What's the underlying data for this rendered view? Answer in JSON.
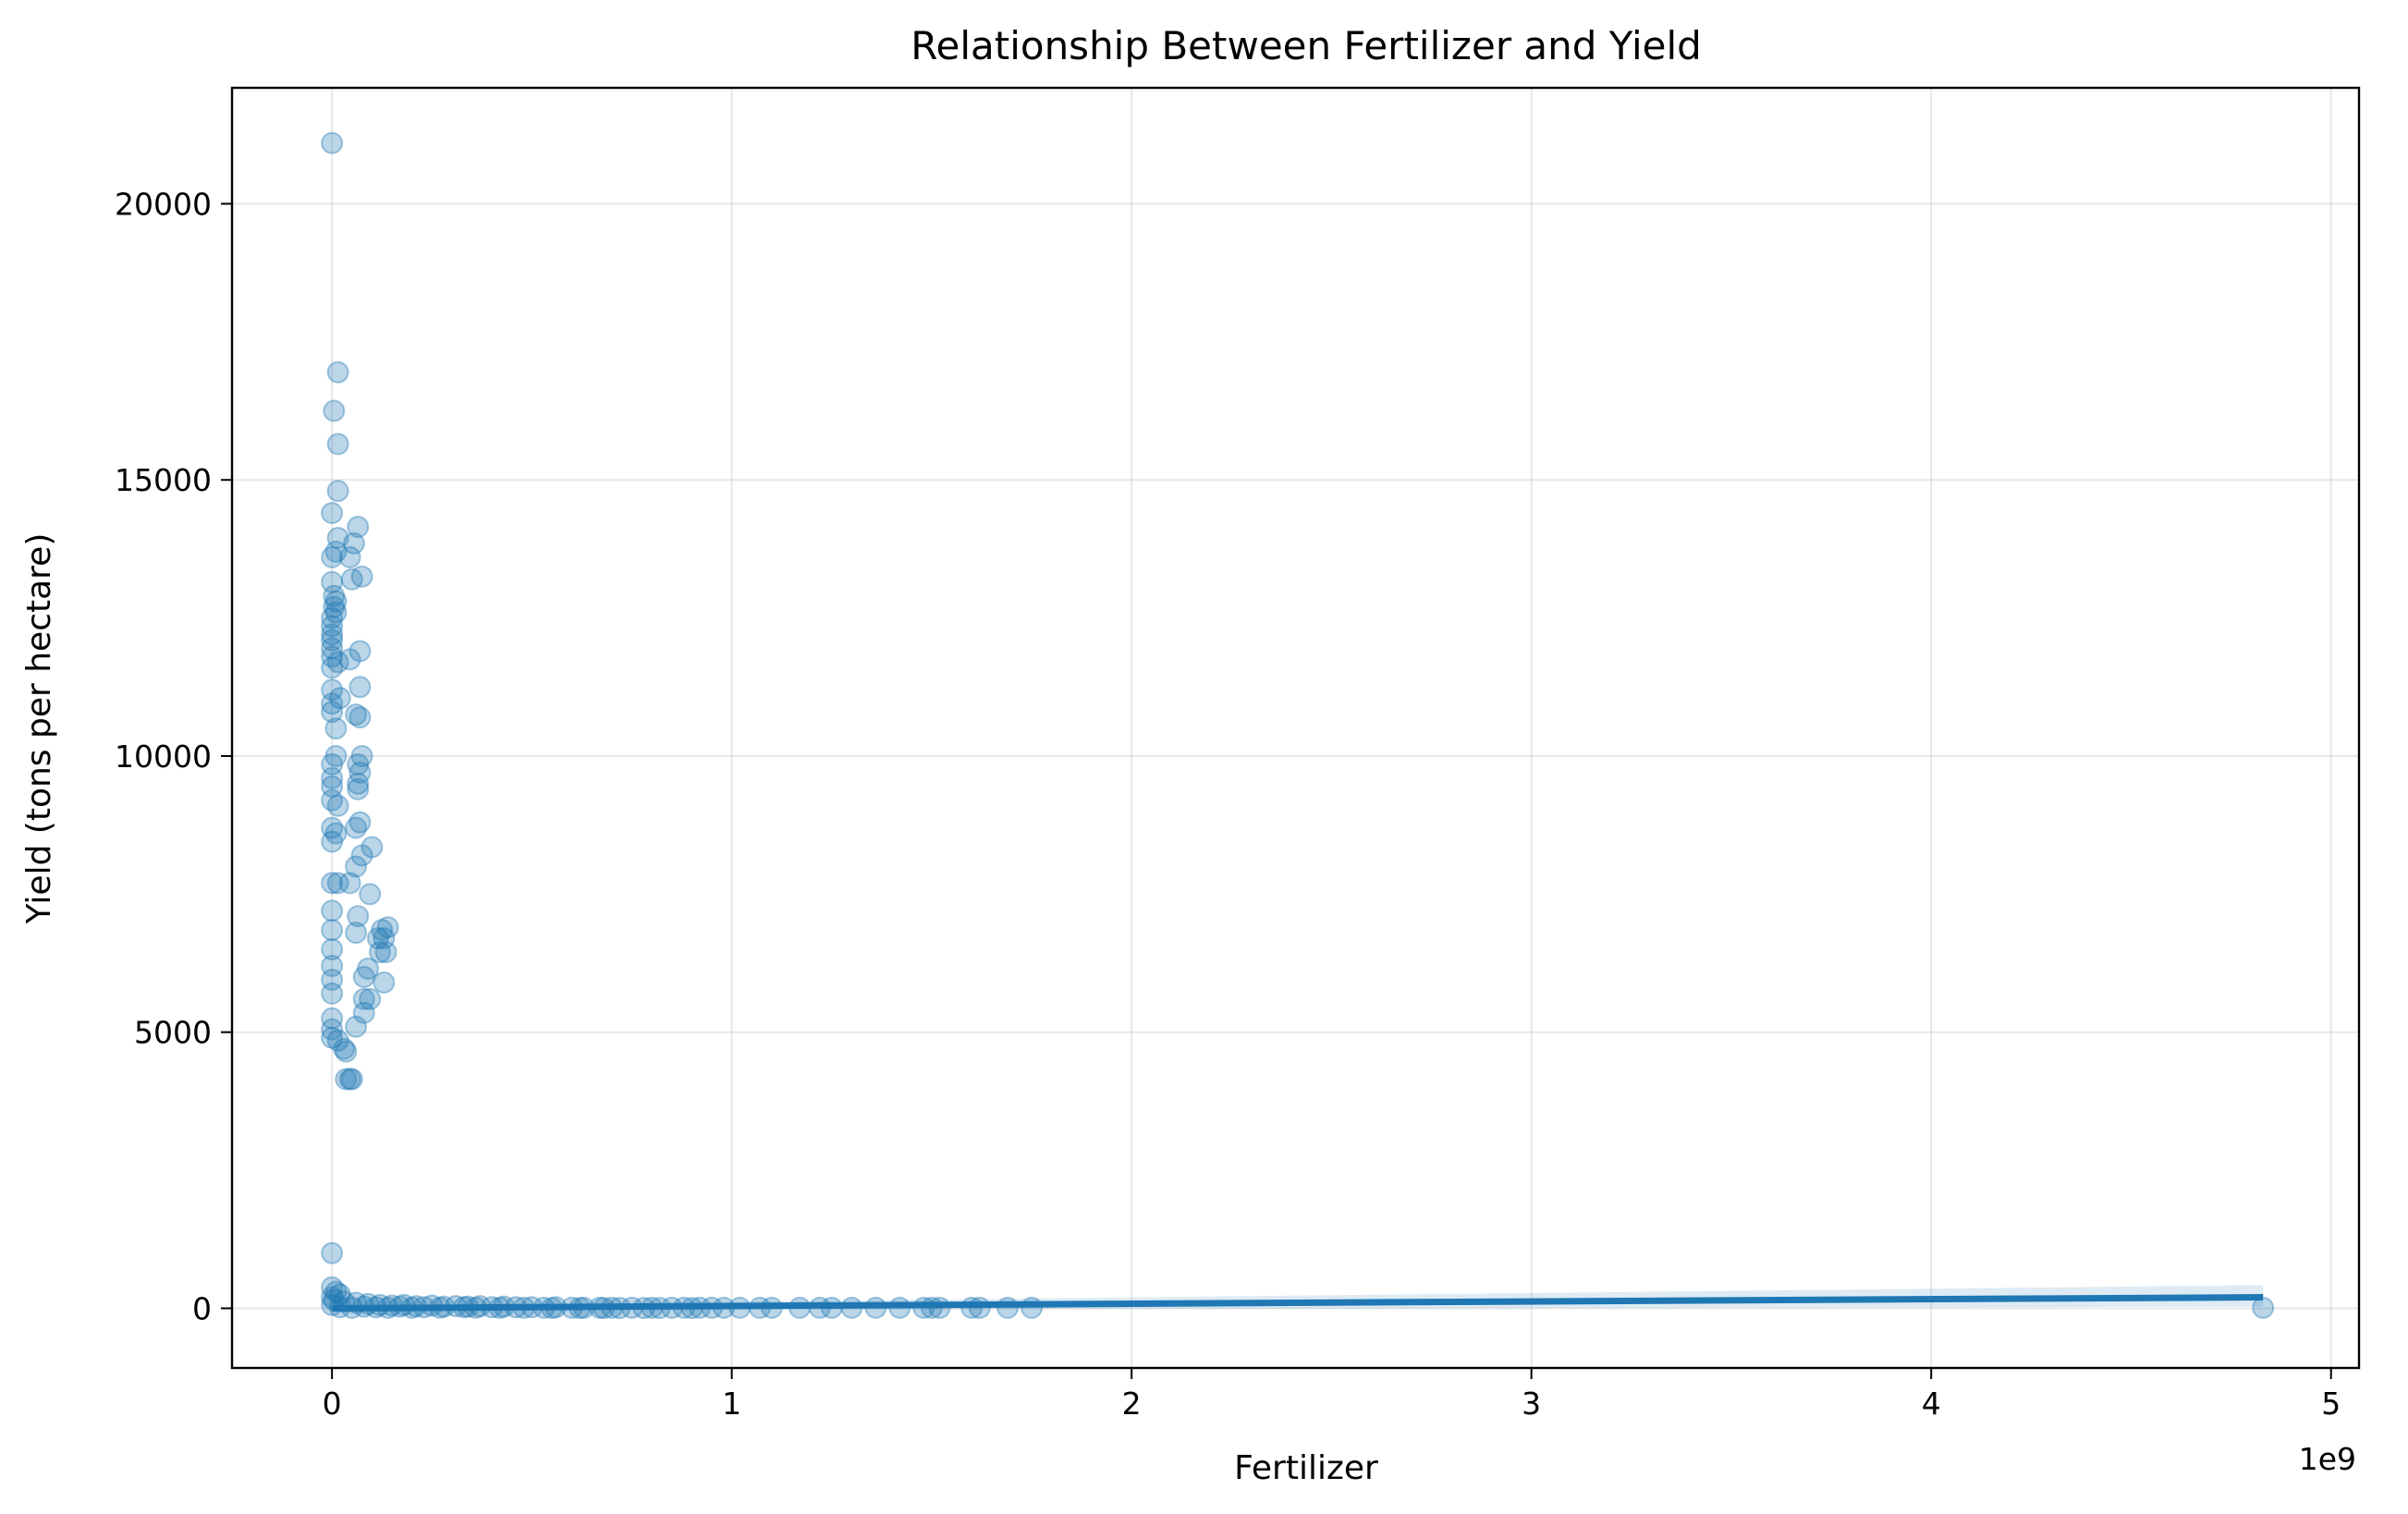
{
  "chart_data": {
    "type": "scatter",
    "title": "Relationship Between Fertilizer and Yield",
    "xlabel": "Fertilizer",
    "ylabel": "Yield (tons per hectare)",
    "x_offset_label": "1e9",
    "xlim": [
      -0.25,
      5.07
    ],
    "ylim": [
      -1080,
      22100
    ],
    "x_ticks": [
      0,
      1,
      2,
      3,
      4,
      5
    ],
    "x_tick_labels": [
      "0",
      "1",
      "2",
      "3",
      "4",
      "5"
    ],
    "y_ticks": [
      0,
      5000,
      10000,
      15000,
      20000
    ],
    "y_tick_labels": [
      "0",
      "5000",
      "10000",
      "15000",
      "20000"
    ],
    "grid": true,
    "color": "#1f77b4",
    "point_alpha": 0.3,
    "series": [
      {
        "points": [
          [
            0.0,
            21100
          ],
          [
            0.015,
            16950
          ],
          [
            0.005,
            16250
          ],
          [
            0.015,
            15650
          ],
          [
            0.015,
            14800
          ],
          [
            0.0,
            14400
          ],
          [
            0.065,
            14150
          ],
          [
            0.015,
            13950
          ],
          [
            0.055,
            13850
          ],
          [
            0.01,
            13700
          ],
          [
            0.045,
            13600
          ],
          [
            0.0,
            13600
          ],
          [
            0.075,
            13250
          ],
          [
            0.05,
            13200
          ],
          [
            0.0,
            13150
          ],
          [
            0.005,
            12900
          ],
          [
            0.01,
            12800
          ],
          [
            0.005,
            12700
          ],
          [
            0.01,
            12600
          ],
          [
            0.0,
            12500
          ],
          [
            0.0,
            12350
          ],
          [
            0.0,
            12200
          ],
          [
            0.0,
            12100
          ],
          [
            0.0,
            11950
          ],
          [
            0.0,
            11800
          ],
          [
            0.015,
            11700
          ],
          [
            0.045,
            11750
          ],
          [
            0.07,
            11900
          ],
          [
            0.0,
            11600
          ],
          [
            0.07,
            11250
          ],
          [
            0.0,
            11200
          ],
          [
            0.0,
            10950
          ],
          [
            0.02,
            11050
          ],
          [
            0.0,
            10800
          ],
          [
            0.06,
            10750
          ],
          [
            0.07,
            10700
          ],
          [
            0.01,
            10500
          ],
          [
            0.01,
            10000
          ],
          [
            0.075,
            10000
          ],
          [
            0.0,
            9850
          ],
          [
            0.065,
            9850
          ],
          [
            0.0,
            9600
          ],
          [
            0.07,
            9700
          ],
          [
            0.065,
            9500
          ],
          [
            0.0,
            9450
          ],
          [
            0.065,
            9400
          ],
          [
            0.0,
            9200
          ],
          [
            0.015,
            9100
          ],
          [
            0.07,
            8800
          ],
          [
            0.0,
            8700
          ],
          [
            0.06,
            8700
          ],
          [
            0.01,
            8600
          ],
          [
            0.0,
            8450
          ],
          [
            0.1,
            8350
          ],
          [
            0.075,
            8200
          ],
          [
            0.06,
            8000
          ],
          [
            0.0,
            7700
          ],
          [
            0.015,
            7700
          ],
          [
            0.045,
            7700
          ],
          [
            0.095,
            7500
          ],
          [
            0.0,
            7200
          ],
          [
            0.065,
            7100
          ],
          [
            0.0,
            6850
          ],
          [
            0.125,
            6850
          ],
          [
            0.14,
            6900
          ],
          [
            0.06,
            6800
          ],
          [
            0.115,
            6700
          ],
          [
            0.13,
            6700
          ],
          [
            0.0,
            6500
          ],
          [
            0.12,
            6450
          ],
          [
            0.135,
            6450
          ],
          [
            0.0,
            6200
          ],
          [
            0.09,
            6150
          ],
          [
            0.08,
            6000
          ],
          [
            0.0,
            5950
          ],
          [
            0.13,
            5900
          ],
          [
            0.0,
            5700
          ],
          [
            0.08,
            5600
          ],
          [
            0.095,
            5600
          ],
          [
            0.08,
            5350
          ],
          [
            0.0,
            5250
          ],
          [
            0.0,
            5050
          ],
          [
            0.06,
            5100
          ],
          [
            0.0,
            4900
          ],
          [
            0.015,
            4850
          ],
          [
            0.03,
            4700
          ],
          [
            0.035,
            4650
          ],
          [
            0.035,
            4150
          ],
          [
            0.045,
            4150
          ],
          [
            0.05,
            4150
          ],
          [
            0.0,
            1000
          ],
          [
            0.0,
            380
          ],
          [
            0.01,
            300
          ],
          [
            0.02,
            250
          ],
          [
            0.0,
            200
          ],
          [
            0.005,
            150
          ],
          [
            0.03,
            120
          ],
          [
            0.06,
            100
          ],
          [
            0.09,
            80
          ],
          [
            0.12,
            60
          ],
          [
            0.15,
            50
          ],
          [
            0.18,
            60
          ],
          [
            0.21,
            40
          ],
          [
            0.25,
            50
          ],
          [
            0.28,
            30
          ],
          [
            0.31,
            40
          ],
          [
            0.34,
            30
          ],
          [
            0.37,
            40
          ],
          [
            0.4,
            20
          ],
          [
            0.43,
            30
          ],
          [
            0.46,
            20
          ],
          [
            0.5,
            20
          ],
          [
            0.53,
            10
          ],
          [
            0.56,
            20
          ],
          [
            0.6,
            10
          ],
          [
            0.63,
            10
          ],
          [
            0.67,
            10
          ],
          [
            0.7,
            10
          ],
          [
            0.75,
            10
          ],
          [
            0.8,
            10
          ],
          [
            0.85,
            10
          ],
          [
            0.88,
            10
          ],
          [
            0.92,
            10
          ],
          [
            0.95,
            10
          ],
          [
            0.98,
            10
          ],
          [
            1.02,
            10
          ],
          [
            1.07,
            10
          ],
          [
            1.1,
            10
          ],
          [
            1.17,
            10
          ],
          [
            1.22,
            10
          ],
          [
            1.25,
            10
          ],
          [
            1.3,
            10
          ],
          [
            1.36,
            10
          ],
          [
            1.42,
            10
          ],
          [
            1.48,
            10
          ],
          [
            1.5,
            10
          ],
          [
            1.52,
            10
          ],
          [
            1.6,
            10
          ],
          [
            1.62,
            10
          ],
          [
            1.69,
            10
          ],
          [
            1.75,
            10
          ],
          [
            4.83,
            10
          ],
          [
            0.0,
            60
          ],
          [
            0.02,
            20
          ],
          [
            0.05,
            10
          ],
          [
            0.08,
            30
          ],
          [
            0.11,
            20
          ],
          [
            0.14,
            10
          ],
          [
            0.17,
            30
          ],
          [
            0.2,
            10
          ],
          [
            0.23,
            20
          ],
          [
            0.27,
            10
          ],
          [
            0.33,
            20
          ],
          [
            0.36,
            10
          ],
          [
            0.42,
            10
          ],
          [
            0.48,
            10
          ],
          [
            0.55,
            5
          ],
          [
            0.62,
            5
          ],
          [
            0.68,
            5
          ],
          [
            0.72,
            5
          ],
          [
            0.78,
            5
          ],
          [
            0.82,
            5
          ],
          [
            0.9,
            5
          ]
        ]
      }
    ],
    "trend_line": {
      "x": [
        0.0,
        4.83
      ],
      "y": [
        0,
        200
      ]
    },
    "confidence_band": {
      "x": [
        0.0,
        4.83
      ],
      "lower": [
        -40,
        30
      ],
      "upper": [
        40,
        420
      ]
    }
  }
}
